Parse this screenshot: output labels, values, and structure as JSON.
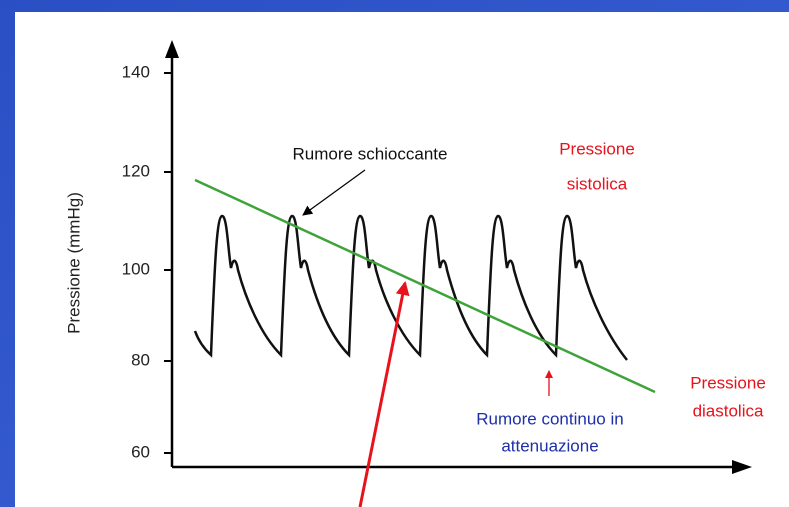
{
  "y_axis": {
    "label": "Pressione (mmHg)",
    "ticks": [
      "140",
      "120",
      "100",
      "80",
      "60"
    ]
  },
  "annotations": {
    "click_sound": "Rumore schioccante",
    "systolic": [
      "Pressione",
      "sistolica"
    ],
    "diastolic": [
      "Pressione",
      "diastolica"
    ],
    "continuous_sound": [
      "Rumore continuo in",
      "attenuazione"
    ]
  }
}
